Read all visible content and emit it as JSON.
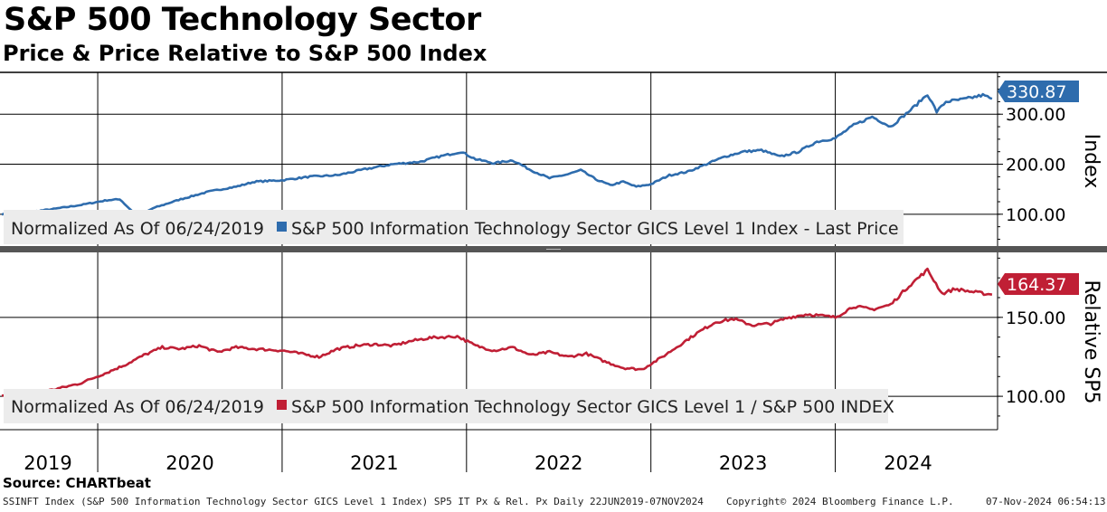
{
  "title": "S&P 500 Technology Sector",
  "subtitle": "Price & Price Relative to S&P 500 Index",
  "source": "Source: CHARTbeat",
  "footer": {
    "description": "SSINFT Index (S&P 500 Information Technology Sector GICS Level 1 Index) SP5 IT Px & Rel. Px  Daily 22JUN2019-07NOV2024",
    "copyright": "Copyright© 2024 Bloomberg Finance L.P.",
    "timestamp": "07-Nov-2024 06:54:13"
  },
  "colors": {
    "price_series": "#2e6cad",
    "relative_series": "#c01f35",
    "price_label_bg": "#2e6cad",
    "relative_label_bg": "#c01f35",
    "legend_bg": "#ececec",
    "grid": "#000000"
  },
  "chart_data": [
    {
      "type": "line",
      "panel": "top",
      "ylabel": "Index",
      "yticks": [
        "100.00",
        "200.00",
        "300.00"
      ],
      "ylim": [
        40,
        380
      ],
      "xlim": [
        2019.47,
        2024.88
      ],
      "last_value_label": "330.87",
      "legend_note": "Normalized As Of 06/24/2019",
      "series": [
        {
          "name": "S&P 500 Information Technology Sector GICS Level 1 Index - Last Price",
          "x": [
            2019.48,
            2019.6,
            2019.75,
            2019.9,
            2020.05,
            2020.12,
            2020.17,
            2020.22,
            2020.3,
            2020.45,
            2020.6,
            2020.67,
            2020.75,
            2020.85,
            2021.0,
            2021.15,
            2021.3,
            2021.45,
            2021.6,
            2021.75,
            2021.85,
            2021.97,
            2022.05,
            2022.15,
            2022.25,
            2022.35,
            2022.45,
            2022.55,
            2022.62,
            2022.7,
            2022.78,
            2022.85,
            2022.92,
            2023.0,
            2023.1,
            2023.2,
            2023.3,
            2023.4,
            2023.5,
            2023.6,
            2023.7,
            2023.8,
            2023.9,
            2024.0,
            2024.1,
            2024.2,
            2024.3,
            2024.42,
            2024.5,
            2024.55,
            2024.6,
            2024.7,
            2024.8,
            2024.85
          ],
          "values": [
            100,
            103,
            110,
            118,
            128,
            130,
            112,
            96,
            112,
            130,
            145,
            150,
            155,
            165,
            168,
            175,
            178,
            190,
            200,
            205,
            215,
            225,
            210,
            202,
            208,
            188,
            172,
            180,
            188,
            170,
            158,
            165,
            155,
            160,
            178,
            185,
            200,
            215,
            225,
            228,
            215,
            225,
            245,
            252,
            278,
            295,
            275,
            312,
            340,
            305,
            325,
            330,
            338,
            330.87
          ]
        }
      ]
    },
    {
      "type": "line",
      "panel": "bottom",
      "ylabel": "Relative SP5",
      "yticks": [
        "100.00",
        "150.00"
      ],
      "ylim": [
        80,
        190
      ],
      "xlim": [
        2019.47,
        2024.88
      ],
      "last_value_label": "164.37",
      "legend_note": "Normalized As Of 06/24/2019",
      "xticks": [
        "2019",
        "2020",
        "2021",
        "2022",
        "2023",
        "2024"
      ],
      "series": [
        {
          "name": "S&P 500 Information Technology Sector GICS Level 1 / S&P 500 INDEX",
          "x": [
            2019.48,
            2019.6,
            2019.75,
            2019.9,
            2020.05,
            2020.15,
            2020.25,
            2020.35,
            2020.45,
            2020.55,
            2020.65,
            2020.75,
            2020.85,
            2021.0,
            2021.1,
            2021.2,
            2021.3,
            2021.4,
            2021.5,
            2021.6,
            2021.7,
            2021.8,
            2021.95,
            2022.05,
            2022.15,
            2022.25,
            2022.35,
            2022.45,
            2022.55,
            2022.65,
            2022.75,
            2022.85,
            2022.95,
            2023.05,
            2023.15,
            2023.25,
            2023.35,
            2023.45,
            2023.55,
            2023.65,
            2023.75,
            2023.85,
            2024.0,
            2024.1,
            2024.2,
            2024.3,
            2024.4,
            2024.5,
            2024.58,
            2024.65,
            2024.75,
            2024.85
          ],
          "values": [
            100,
            102,
            104,
            108,
            115,
            120,
            126,
            131,
            130,
            132,
            128,
            131,
            130,
            129,
            127,
            125,
            130,
            132,
            133,
            132,
            135,
            137,
            138,
            132,
            129,
            131,
            126,
            128,
            125,
            127,
            122,
            118,
            117,
            124,
            132,
            140,
            147,
            149,
            145,
            146,
            150,
            152,
            150,
            157,
            155,
            158,
            170,
            180,
            165,
            168,
            166,
            164.37
          ]
        }
      ]
    }
  ]
}
